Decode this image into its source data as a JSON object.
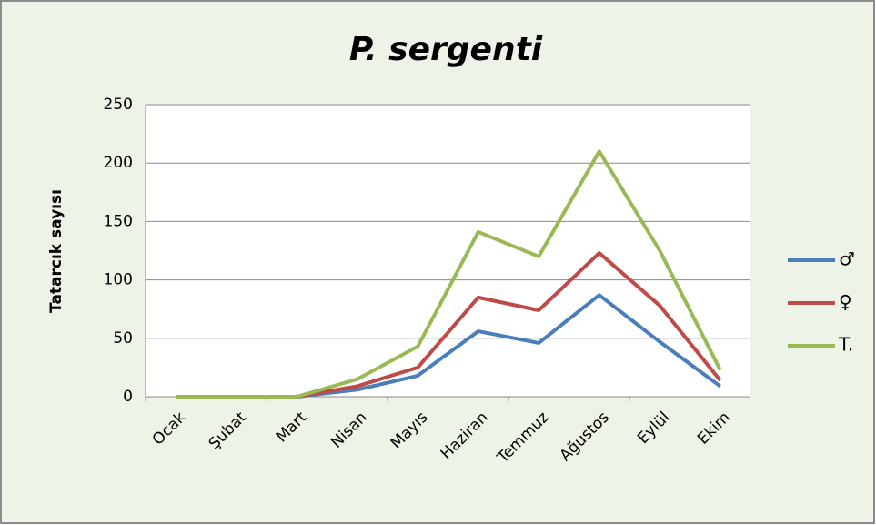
{
  "chart_data": {
    "type": "line",
    "title": "P. sergenti",
    "y_label": "Tatarcık sayısı",
    "categories": [
      "Ocak",
      "Şubat",
      "Mart",
      "Nisan",
      "Mayıs",
      "Haziran",
      "Temmuz",
      "Ağustos",
      "Eylül",
      "Ekim"
    ],
    "series": [
      {
        "name": "♂",
        "color": "#4a7ebb",
        "values": [
          0,
          0,
          0,
          6,
          18,
          56,
          46,
          87,
          47,
          9
        ]
      },
      {
        "name": "♀",
        "color": "#be4b48",
        "values": [
          0,
          0,
          0,
          9,
          25,
          85,
          74,
          123,
          78,
          14
        ]
      },
      {
        "name": "T.",
        "color": "#98b954",
        "values": [
          0,
          0,
          0,
          15,
          43,
          141,
          120,
          210,
          125,
          23
        ]
      }
    ],
    "ylim": [
      0,
      250
    ],
    "yticks": [
      0,
      50,
      100,
      150,
      200,
      250
    ],
    "grid": true,
    "legend": "right"
  }
}
